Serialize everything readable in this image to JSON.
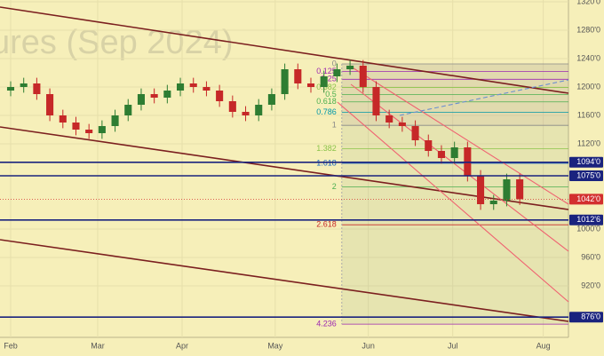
{
  "chart_data": {
    "type": "candlestick",
    "watermark": "ures (Sep 2024)",
    "x": [
      0,
      3,
      6,
      9,
      12,
      15,
      18,
      21,
      24,
      27,
      30,
      33,
      36,
      39,
      42,
      45,
      48,
      51,
      54,
      57,
      60,
      63,
      66,
      69,
      72,
      75,
      78,
      81,
      84,
      87,
      90,
      93,
      96,
      99,
      102,
      105,
      108,
      111,
      114,
      117
    ],
    "open": [
      1195,
      1200,
      1205,
      1190,
      1160,
      1150,
      1140,
      1135,
      1145,
      1160,
      1175,
      1190,
      1185,
      1195,
      1205,
      1200,
      1195,
      1180,
      1165,
      1160,
      1175,
      1190,
      1225,
      1205,
      1200,
      1215,
      1225,
      1230,
      1200,
      1160,
      1150,
      1145,
      1125,
      1110,
      1100,
      1115,
      1075,
      1035,
      1040,
      1070
    ],
    "high": [
      1208,
      1213,
      1213,
      1198,
      1168,
      1158,
      1148,
      1153,
      1168,
      1183,
      1198,
      1198,
      1203,
      1213,
      1213,
      1208,
      1203,
      1188,
      1173,
      1183,
      1198,
      1233,
      1233,
      1213,
      1223,
      1233,
      1238,
      1238,
      1208,
      1168,
      1158,
      1153,
      1133,
      1118,
      1123,
      1123,
      1083,
      1048,
      1078,
      1078
    ],
    "low": [
      1187,
      1192,
      1182,
      1152,
      1142,
      1132,
      1127,
      1127,
      1137,
      1152,
      1167,
      1177,
      1177,
      1187,
      1192,
      1187,
      1172,
      1157,
      1152,
      1152,
      1167,
      1182,
      1197,
      1192,
      1192,
      1207,
      1217,
      1192,
      1152,
      1142,
      1137,
      1117,
      1102,
      1092,
      1092,
      1067,
      1027,
      1027,
      1032,
      1034
    ],
    "close": [
      1200,
      1205,
      1190,
      1160,
      1150,
      1140,
      1135,
      1145,
      1160,
      1175,
      1190,
      1185,
      1195,
      1205,
      1200,
      1195,
      1180,
      1165,
      1160,
      1175,
      1190,
      1225,
      1205,
      1200,
      1215,
      1225,
      1230,
      1200,
      1160,
      1150,
      1145,
      1125,
      1110,
      1100,
      1115,
      1075,
      1035,
      1040,
      1070,
      1042
    ],
    "up_color": "#2e7d32",
    "down_color": "#c62828",
    "xlim": [
      -2.45,
      128.2
    ],
    "ylim": [
      847.5,
      1322.5
    ],
    "xticks": [
      {
        "value": 0,
        "label": "Feb"
      },
      {
        "value": 20,
        "label": "Mar"
      },
      {
        "value": 39.4,
        "label": "Apr"
      },
      {
        "value": 60.8,
        "label": "May"
      },
      {
        "value": 82.2,
        "label": "Jun"
      },
      {
        "value": 101.6,
        "label": "Jul"
      },
      {
        "value": 122.4,
        "label": "Aug"
      }
    ],
    "yticks": [
      {
        "value": 1320,
        "label": "1320'0"
      },
      {
        "value": 1280,
        "label": "1280'0"
      },
      {
        "value": 1240,
        "label": "1240'0"
      },
      {
        "value": 1200,
        "label": "1200'0"
      },
      {
        "value": 1160,
        "label": "1160'0"
      },
      {
        "value": 1120,
        "label": "1120'0"
      },
      {
        "value": 1000,
        "label": "1000'0"
      },
      {
        "value": 960,
        "label": "960'0"
      },
      {
        "value": 920,
        "label": "920'0"
      }
    ],
    "fib_start": 1232.5,
    "fib_end": 1146,
    "fib_x": 76.1,
    "fib_levels": [
      0,
      0.125,
      0.25,
      0.382,
      0.5,
      0.618,
      0.786,
      1,
      1.382,
      1.618,
      2,
      2.618,
      4.236
    ],
    "fib_colors": [
      "#888888",
      "#9c27b0",
      "#9c27b0",
      "#8bc34a",
      "#4caf50",
      "#4caf50",
      "#0097a7",
      "#888888",
      "#8bc34a",
      "#1565c0",
      "#4caf50",
      "#c62828",
      "#9c27b0"
    ],
    "trendlines": [
      {
        "x": [
          -2.45,
          128.2
        ],
        "y": [
          1312.5,
          1191.25
        ],
        "color": "#7b1f1f"
      },
      {
        "x": [
          -2.45,
          128.2
        ],
        "y": [
          1143.75,
          1027.5
        ],
        "color": "#7b1f1f"
      },
      {
        "x": [
          -2.45,
          128.2
        ],
        "y": [
          985,
          870
        ],
        "color": "#7b1f1f"
      },
      {
        "x": [
          78.2,
          128.2
        ],
        "y": [
          1228.75,
          1035
        ],
        "color": "#f06070"
      },
      {
        "x": [
          78.2,
          128.2
        ],
        "y": [
          1203.75,
          968.75
        ],
        "color": "#f06070"
      },
      {
        "x": [
          75.1,
          128.2
        ],
        "y": [
          1178.75,
          897.5
        ],
        "color": "#f06070"
      },
      {
        "x": [
          89.4,
          128.2
        ],
        "y": [
          1160,
          1210
        ],
        "color": "#6a8fd0"
      }
    ],
    "price_labels": [
      {
        "value": 1094,
        "label": "1094'0",
        "color": "#1a237e",
        "line": true
      },
      {
        "value": 1075,
        "label": "1075'0",
        "color": "#1a237e",
        "line": true
      },
      {
        "value": 1042,
        "label": "1042'0",
        "color": "#d32f2f",
        "line": false
      },
      {
        "value": 1012.75,
        "label": "1012'6",
        "color": "#1a237e",
        "line": true
      },
      {
        "value": 876,
        "label": "876'0",
        "color": "#1a237e",
        "line": true
      }
    ]
  }
}
